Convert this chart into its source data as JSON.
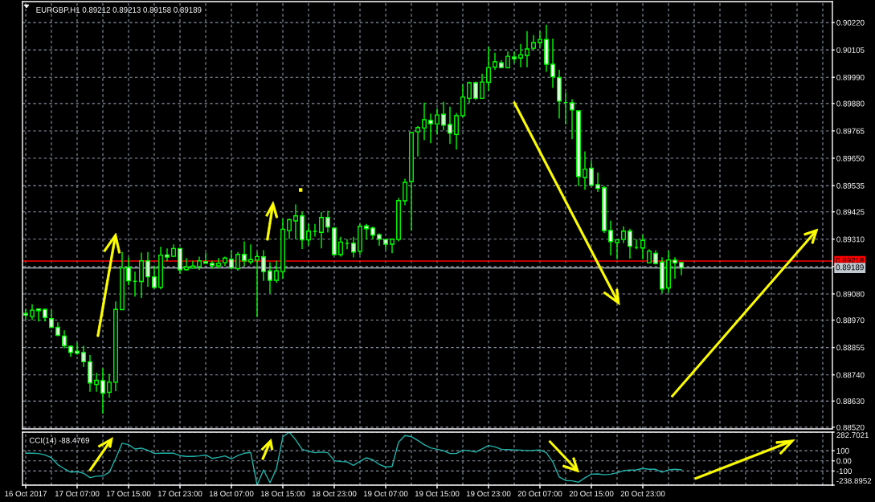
{
  "chart_data": [
    {
      "type": "candlestick",
      "title": "EURGBP,H1 0.89212 0.89213 0.89158 0.89189",
      "categories": [
        null,
        null,
        null,
        null,
        null,
        null,
        null,
        null,
        null,
        null,
        null,
        null,
        null,
        null,
        null,
        null,
        null,
        null,
        null,
        null,
        null,
        null,
        null,
        null,
        null,
        null,
        null,
        null,
        null,
        null,
        null,
        null,
        null,
        null,
        null,
        null,
        null,
        null,
        null,
        null,
        null,
        null,
        null,
        null,
        null,
        null,
        null,
        null,
        null,
        null,
        null,
        null,
        null,
        null,
        null,
        null,
        null,
        null,
        null,
        null,
        null,
        null,
        null,
        null,
        null,
        null,
        null,
        null,
        null,
        null,
        null,
        null,
        null,
        null,
        null,
        null,
        null,
        null,
        null,
        null,
        null,
        null,
        null,
        null,
        null,
        null,
        null,
        null,
        null,
        null,
        null,
        null,
        null,
        null,
        null,
        null,
        null,
        null,
        null,
        null,
        null,
        null,
        null,
        null,
        null,
        null,
        null,
        null,
        null,
        null,
        null,
        null,
        null,
        null,
        null,
        null,
        null,
        null,
        null,
        null,
        null,
        null,
        null,
        null,
        null,
        null
      ],
      "ohlc": [
        [
          0.88998,
          0.89017,
          0.88972,
          0.88991
        ],
        [
          0.88985,
          0.89037,
          0.8897,
          0.89012
        ],
        [
          0.89017,
          0.89019,
          0.88964,
          0.8901
        ],
        [
          0.89015,
          0.89019,
          0.88964,
          0.88981
        ],
        [
          0.88976,
          0.89012,
          0.88936,
          0.8894
        ],
        [
          0.8894,
          0.88961,
          0.88903,
          0.88906
        ],
        [
          0.88903,
          0.88927,
          0.88851,
          0.88862
        ],
        [
          0.8886,
          0.88864,
          0.88816,
          0.88834
        ],
        [
          0.8884,
          0.88876,
          0.88824,
          0.88831
        ],
        [
          0.88834,
          0.88862,
          0.88773,
          0.88795
        ],
        [
          0.88795,
          0.88823,
          0.88669,
          0.88706
        ],
        [
          0.887,
          0.88748,
          0.88669,
          0.88717
        ],
        [
          0.88716,
          0.88768,
          0.88577,
          0.88663
        ],
        [
          0.88667,
          0.88744,
          0.88644,
          0.88709
        ],
        [
          0.88709,
          0.89049,
          0.88672,
          0.89015
        ],
        [
          0.89014,
          0.89256,
          0.89014,
          0.89189
        ],
        [
          0.89192,
          0.89233,
          0.89116,
          0.89135
        ],
        [
          0.89133,
          0.89174,
          0.89069,
          0.89133
        ],
        [
          0.89132,
          0.89254,
          0.89063,
          0.89219
        ],
        [
          0.89219,
          0.89256,
          0.8911,
          0.89152
        ],
        [
          0.89152,
          0.89199,
          0.89105,
          0.89107
        ],
        [
          0.89108,
          0.89278,
          0.89099,
          0.89243
        ],
        [
          0.89244,
          0.89271,
          0.89217,
          0.89235
        ],
        [
          0.89238,
          0.89288,
          0.89234,
          0.89271
        ],
        [
          0.89271,
          0.89273,
          0.89165,
          0.89181
        ],
        [
          0.89182,
          0.89231,
          0.89178,
          0.89193
        ],
        [
          0.89189,
          0.89219,
          0.89186,
          0.89197
        ],
        [
          0.89195,
          0.89237,
          0.8918,
          0.89219
        ],
        [
          0.89216,
          0.89254,
          0.89206,
          0.89209
        ],
        [
          0.89209,
          0.89219,
          0.89186,
          0.89199
        ],
        [
          0.89198,
          0.89231,
          0.89189,
          0.89209
        ],
        [
          0.89211,
          0.89237,
          0.89197,
          0.89231
        ],
        [
          0.89226,
          0.89262,
          0.89183,
          0.89189
        ],
        [
          0.89186,
          0.89256,
          0.89178,
          0.89246
        ],
        [
          0.89246,
          0.89301,
          0.89197,
          0.89219
        ],
        [
          0.89215,
          0.89288,
          0.89204,
          0.89224
        ],
        [
          0.89222,
          0.89256,
          0.88983,
          0.89237
        ],
        [
          0.89236,
          0.89264,
          0.89135,
          0.89174
        ],
        [
          0.89177,
          0.89213,
          0.89082,
          0.89137
        ],
        [
          0.89137,
          0.89219,
          0.89127,
          0.89177
        ],
        [
          0.89174,
          0.89396,
          0.89144,
          0.89352
        ],
        [
          0.89346,
          0.89396,
          0.89311,
          0.89392
        ],
        [
          0.89387,
          0.89456,
          0.89309,
          0.89408
        ],
        [
          0.89408,
          0.89425,
          0.89269,
          0.89307
        ],
        [
          0.89307,
          0.89374,
          0.89284,
          0.89344
        ],
        [
          0.89343,
          0.89374,
          0.89321,
          0.89343
        ],
        [
          0.89339,
          0.89424,
          0.89271,
          0.89401
        ],
        [
          0.89401,
          0.89429,
          0.89338,
          0.89361
        ],
        [
          0.89357,
          0.89361,
          0.89245,
          0.89245
        ],
        [
          0.89245,
          0.8932,
          0.89237,
          0.89298
        ],
        [
          0.89292,
          0.89309,
          0.89268,
          0.89292
        ],
        [
          0.89293,
          0.8932,
          0.89233,
          0.89256
        ],
        [
          0.89259,
          0.89374,
          0.89245,
          0.89364
        ],
        [
          0.89366,
          0.89374,
          0.89309,
          0.89354
        ],
        [
          0.89357,
          0.89363,
          0.89309,
          0.89327
        ],
        [
          0.89329,
          0.89335,
          0.89282,
          0.8931
        ],
        [
          0.89309,
          0.89313,
          0.89265,
          0.89289
        ],
        [
          0.89289,
          0.89313,
          0.89251,
          0.8931
        ],
        [
          0.89309,
          0.89483,
          0.89301,
          0.89472
        ],
        [
          0.89471,
          0.89564,
          0.89453,
          0.89549
        ],
        [
          0.89552,
          0.89758,
          0.89346,
          0.89758
        ],
        [
          0.89761,
          0.89786,
          0.89658,
          0.89779
        ],
        [
          0.89777,
          0.89884,
          0.89726,
          0.89812
        ],
        [
          0.89809,
          0.89837,
          0.89713,
          0.89795
        ],
        [
          0.89794,
          0.89859,
          0.8975,
          0.89832
        ],
        [
          0.89835,
          0.89887,
          0.89767,
          0.89789
        ],
        [
          0.89792,
          0.89867,
          0.8971,
          0.89755
        ],
        [
          0.8975,
          0.8984,
          0.89686,
          0.89829
        ],
        [
          0.89829,
          0.8996,
          0.89823,
          0.89907
        ],
        [
          0.89902,
          0.89972,
          0.89882,
          0.89967
        ],
        [
          0.89967,
          0.89972,
          0.89895,
          0.89902
        ],
        [
          0.89902,
          0.90005,
          0.89902,
          0.8997
        ],
        [
          0.89969,
          0.90118,
          0.89934,
          0.90031
        ],
        [
          0.90033,
          0.90093,
          0.90021,
          0.90055
        ],
        [
          0.90051,
          0.90062,
          0.9003,
          0.90031
        ],
        [
          0.9003,
          0.90099,
          0.90027,
          0.90078
        ],
        [
          0.90075,
          0.90099,
          0.9005,
          0.90068
        ],
        [
          0.90071,
          0.9013,
          0.90032,
          0.90085
        ],
        [
          0.90082,
          0.90184,
          0.90032,
          0.90109
        ],
        [
          0.90112,
          0.90167,
          0.90104,
          0.90136
        ],
        [
          0.90136,
          0.90183,
          0.90115,
          0.90149
        ],
        [
          0.90149,
          0.90211,
          0.90013,
          0.90045
        ],
        [
          0.90045,
          0.90153,
          0.89945,
          0.89992
        ],
        [
          0.89989,
          0.90022,
          0.89817,
          0.8989
        ],
        [
          0.89884,
          0.89928,
          0.89792,
          0.89884
        ],
        [
          0.89883,
          0.89898,
          0.8973,
          0.89853
        ],
        [
          0.89849,
          0.89849,
          0.89534,
          0.89573
        ],
        [
          0.89569,
          0.89679,
          0.89518,
          0.89604
        ],
        [
          0.89608,
          0.89638,
          0.89534,
          0.89537
        ],
        [
          0.89539,
          0.8959,
          0.89508,
          0.89523
        ],
        [
          0.89526,
          0.89534,
          0.89336,
          0.89346
        ],
        [
          0.89347,
          0.89388,
          0.89242,
          0.893
        ],
        [
          0.89296,
          0.89309,
          0.89226,
          0.89307
        ],
        [
          0.89309,
          0.89364,
          0.89293,
          0.89344
        ],
        [
          0.89344,
          0.89354,
          0.89228,
          0.8928
        ],
        [
          0.89275,
          0.89309,
          0.89268,
          0.89275
        ],
        [
          0.89273,
          0.89329,
          0.89225,
          0.89305
        ],
        [
          0.89211,
          0.89268,
          0.89208,
          0.8926
        ],
        [
          0.8925,
          0.89264,
          0.89204,
          0.89208
        ],
        [
          0.89214,
          0.89234,
          0.89082,
          0.89101
        ],
        [
          0.89105,
          0.8926,
          0.89085,
          0.89223
        ],
        [
          0.89222,
          0.89234,
          0.89144,
          0.8921
        ],
        [
          0.89212,
          0.89213,
          0.89158,
          0.89189
        ],
        null,
        null,
        null,
        null,
        null,
        null,
        null,
        null,
        null,
        null,
        null,
        null,
        null,
        null,
        null,
        null,
        null,
        null,
        null,
        null,
        null,
        null,
        null
      ],
      "color": "#00ff00",
      "colors": [
        "#ffffff",
        "#000000",
        "#ffffff",
        "#ffffff",
        "#ffffff",
        "#ffffff",
        "#ffffff",
        "#ffffff",
        "#ffffff",
        "#ffffff",
        "#ffffff",
        "#000000",
        "#ffffff",
        "#000000",
        "#000000",
        "#000000",
        "#ffffff",
        "#00ff00",
        "#000000",
        "#ffffff",
        "#ffffff",
        "#000000",
        "#ffffff",
        "#000000",
        "#ffffff",
        "#000000",
        "#000000",
        "#000000",
        "#ffffff",
        "#ffffff",
        "#000000",
        "#000000",
        "#ffffff",
        "#000000",
        "#ffffff",
        "#000000",
        "#000000",
        "#ffffff",
        "#ffffff",
        "#000000",
        "#000000",
        "#000000",
        "#000000",
        "#ffffff",
        "#000000",
        "#00ff00",
        "#000000",
        "#ffffff",
        "#ffffff",
        "#000000",
        "#00ff00",
        "#ffffff",
        "#000000",
        "#ffffff",
        "#ffffff",
        "#ffffff",
        "#ffffff",
        "#000000",
        "#000000",
        "#000000",
        "#000000",
        "#000000",
        "#000000",
        "#ffffff",
        "#000000",
        "#ffffff",
        "#ffffff",
        "#000000",
        "#000000",
        "#000000",
        "#ffffff",
        "#000000",
        "#000000",
        "#000000",
        "#ffffff",
        "#000000",
        "#ffffff",
        "#000000",
        "#000000",
        "#000000",
        "#000000",
        "#ffffff",
        "#ffffff",
        "#ffffff",
        "#00ff00",
        "#ffffff",
        "#ffffff",
        "#000000",
        "#ffffff",
        "#ffffff",
        "#ffffff",
        "#ffffff",
        "#000000",
        "#000000",
        "#ffffff",
        "#00ff00",
        "#000000",
        "#000000",
        "#ffffff",
        "#ffffff",
        "#000000",
        "#ffffff",
        "#ffffff",
        null,
        null,
        null,
        null,
        null,
        null,
        null,
        null,
        null,
        null,
        null,
        null,
        null,
        null,
        null,
        null,
        null,
        null,
        null,
        null,
        null,
        null,
        null
      ],
      "ylim": [
        0.88513,
        0.90308
      ],
      "yticks": [
        {
          "value": 0.9022,
          "label": "0.90220"
        },
        {
          "value": 0.90105,
          "label": "0.90105"
        },
        {
          "value": 0.8999,
          "label": "0.89990"
        },
        {
          "value": 0.8988,
          "label": "0.89880"
        },
        {
          "value": 0.89765,
          "label": "0.89765"
        },
        {
          "value": 0.8965,
          "label": "0.89650"
        },
        {
          "value": 0.89535,
          "label": "0.89535"
        },
        {
          "value": 0.89425,
          "label": "0.89425"
        },
        {
          "value": 0.8931,
          "label": "0.89310"
        },
        {
          "value": 0.89195,
          "label": null
        },
        {
          "value": 0.8908,
          "label": "0.89080"
        },
        {
          "value": 0.8897,
          "label": "0.88970"
        },
        {
          "value": 0.88855,
          "label": "0.88855"
        },
        {
          "value": 0.8874,
          "label": "0.88740"
        },
        {
          "value": 0.8863,
          "label": "0.88630"
        },
        {
          "value": 0.8852,
          "label": "0.88520"
        }
      ],
      "grid": true,
      "tick_labels": "y",
      "ref_lines": [
        {
          "axis": "y",
          "value": 0.89218,
          "label": "0.89218",
          "color": "#ff0000"
        },
        {
          "axis": "y",
          "value": 0.89189,
          "label": "0.89189",
          "color": "#c0c8d0"
        }
      ]
    },
    {
      "type": "line",
      "title": "CCI(14) -88.4769",
      "categories": [
        "16 Oct 2017",
        null,
        null,
        null,
        null,
        null,
        null,
        null,
        "17 Oct 07:00",
        null,
        null,
        null,
        null,
        null,
        null,
        null,
        "17 Oct 15:00",
        null,
        null,
        null,
        null,
        null,
        null,
        null,
        "17 Oct 23:00",
        null,
        null,
        null,
        null,
        null,
        null,
        null,
        "18 Oct 07:00",
        null,
        null,
        null,
        null,
        null,
        null,
        null,
        "18 Oct 15:00",
        null,
        null,
        null,
        null,
        null,
        null,
        null,
        "18 Oct 23:00",
        null,
        null,
        null,
        null,
        null,
        null,
        null,
        "19 Oct 07:00",
        null,
        null,
        null,
        null,
        null,
        null,
        null,
        "19 Oct 15:00",
        null,
        null,
        null,
        null,
        null,
        null,
        null,
        "19 Oct 23:00",
        null,
        null,
        null,
        null,
        null,
        null,
        null,
        "20 Oct 07:00",
        null,
        null,
        null,
        null,
        null,
        null,
        null,
        "20 Oct 15:00",
        null,
        null,
        null,
        null,
        null,
        null,
        null,
        "20 Oct 23:00",
        null,
        null,
        null,
        null,
        null,
        null,
        null,
        null,
        null,
        null,
        null,
        null,
        null,
        null,
        null,
        null,
        null,
        null,
        null,
        null,
        null,
        null,
        null,
        null,
        null,
        null,
        null,
        null,
        null
      ],
      "values": [
        75,
        75,
        72,
        58,
        30,
        -38,
        -77,
        -111,
        -106,
        -122,
        -165,
        -151,
        -148,
        -114,
        24,
        173,
        159,
        117,
        125,
        103,
        72,
        75,
        75,
        75,
        52,
        44,
        44,
        49,
        58,
        24,
        35,
        49,
        18,
        52,
        75,
        83,
        -238.8952,
        -89,
        -215,
        -80,
        235,
        282.7021,
        207,
        114,
        94,
        80,
        86,
        80,
        1,
        -7,
        -10,
        -44,
        -4,
        30,
        10,
        -35,
        -61,
        -55,
        184,
        249,
        238,
        201,
        159,
        128,
        114,
        100,
        72,
        72,
        106,
        100,
        86,
        117,
        151,
        137,
        114,
        111,
        108,
        106,
        100,
        103,
        108,
        80,
        -10,
        -159,
        -193,
        -196,
        -210,
        -167,
        -131,
        -128,
        -137,
        -131,
        -117,
        -97,
        -91,
        -89,
        -75,
        -83,
        -83,
        -111,
        -89,
        -83,
        -88.4769,
        null,
        null,
        null,
        null,
        null,
        null,
        null,
        null,
        null,
        null,
        null,
        null,
        null,
        null,
        null,
        null,
        null,
        null,
        null,
        null,
        null,
        null,
        null
      ],
      "color": "#20b2aa",
      "ylim": [
        -238.8952,
        282.7021
      ],
      "yticks": [
        {
          "value": 282.7021,
          "label": "282.7021"
        },
        100,
        {
          "value": 0,
          "label": "0.00"
        },
        -100,
        {
          "value": -238.8952,
          "label": "-238.8952"
        }
      ],
      "grid": true
    }
  ]
}
